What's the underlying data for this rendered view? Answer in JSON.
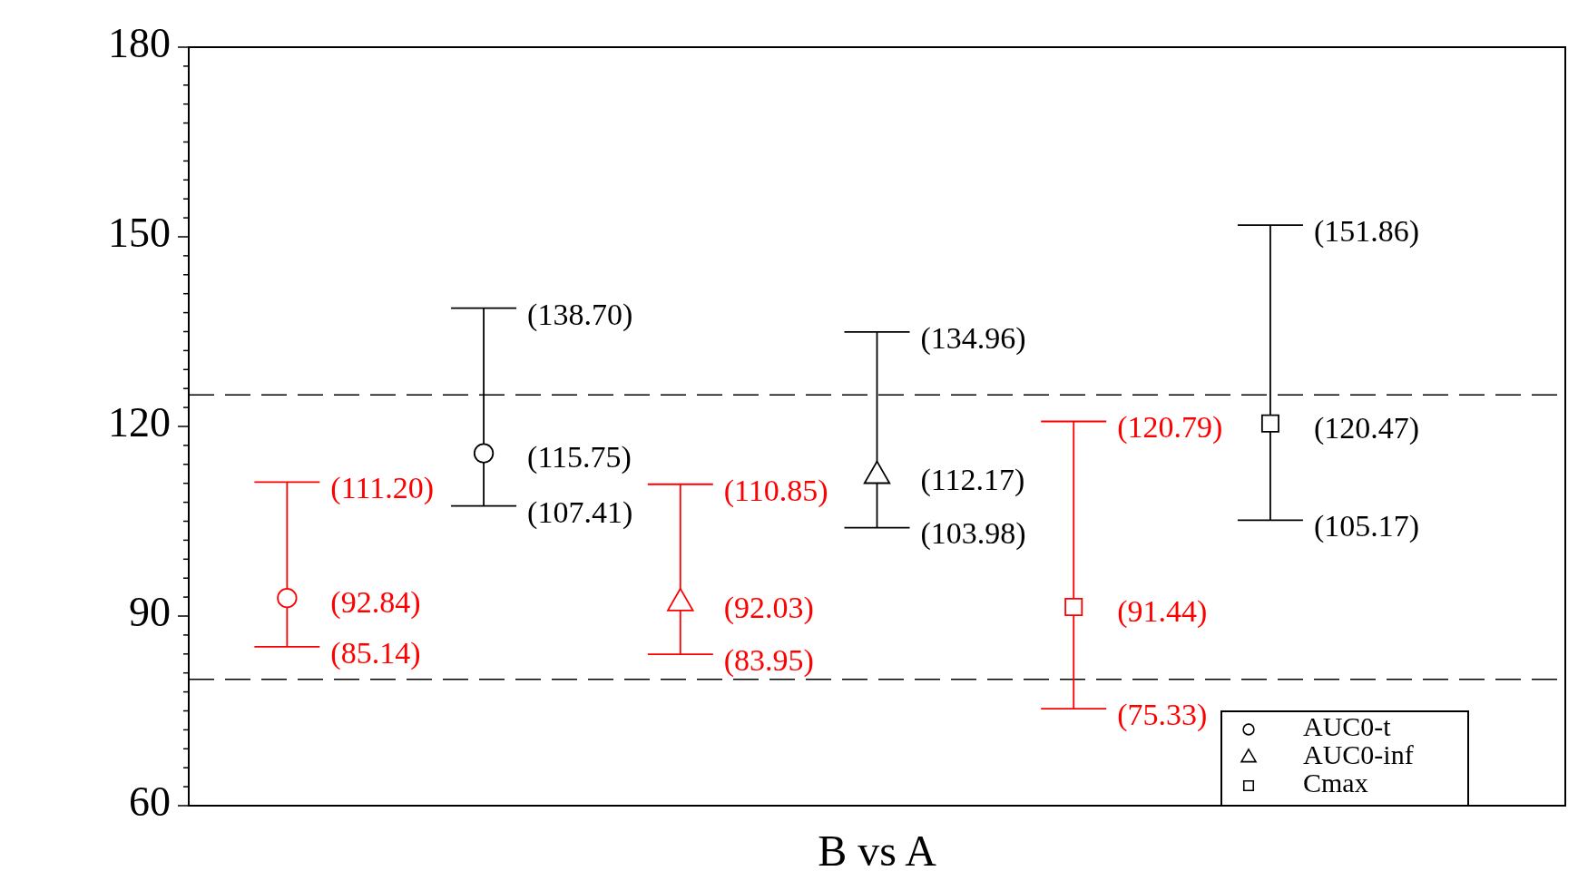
{
  "chart_data": {
    "type": "scatter",
    "xlabel": "B vs A",
    "categories": [
      null,
      null,
      null,
      null,
      null,
      null,
      null
    ],
    "ylim": [
      60,
      180
    ],
    "tick_labels": "y",
    "yticks": [
      60,
      {
        "value": 63,
        "label": null
      },
      {
        "value": 66,
        "label": null
      },
      {
        "value": 69,
        "label": null
      },
      {
        "value": 72,
        "label": null
      },
      {
        "value": 75,
        "label": null
      },
      {
        "value": 78,
        "label": null
      },
      {
        "value": 81,
        "label": null
      },
      {
        "value": 84,
        "label": null
      },
      {
        "value": 87,
        "label": null
      },
      90,
      {
        "value": 93,
        "label": null
      },
      {
        "value": 96,
        "label": null
      },
      {
        "value": 99,
        "label": null
      },
      {
        "value": 102,
        "label": null
      },
      {
        "value": 105,
        "label": null
      },
      {
        "value": 108,
        "label": null
      },
      {
        "value": 111,
        "label": null
      },
      {
        "value": 114,
        "label": null
      },
      {
        "value": 117,
        "label": null
      },
      120,
      {
        "value": 123,
        "label": null
      },
      {
        "value": 126,
        "label": null
      },
      {
        "value": 129,
        "label": null
      },
      {
        "value": 132,
        "label": null
      },
      {
        "value": 135,
        "label": null
      },
      {
        "value": 138,
        "label": null
      },
      {
        "value": 141,
        "label": null
      },
      {
        "value": 144,
        "label": null
      },
      {
        "value": 147,
        "label": null
      },
      150,
      {
        "value": 153,
        "label": null
      },
      {
        "value": 156,
        "label": null
      },
      {
        "value": 159,
        "label": null
      },
      {
        "value": 162,
        "label": null
      },
      {
        "value": 165,
        "label": null
      },
      {
        "value": 168,
        "label": null
      },
      {
        "value": 171,
        "label": null
      },
      {
        "value": 174,
        "label": null
      },
      {
        "value": 177,
        "label": null
      },
      180
    ],
    "legend": "bottom right",
    "series": [
      {
        "name": "AUC0-t",
        "marker": "circle",
        "color": "#000000",
        "colors": [
          "#ff0000",
          "#000000",
          null,
          null,
          null,
          null,
          null
        ],
        "values": [
          92.84,
          115.75,
          null,
          null,
          null,
          null,
          null
        ],
        "errors": [
          [
            85.14,
            111.2
          ],
          [
            107.41,
            138.7
          ],
          null,
          null,
          null,
          null,
          null
        ],
        "value_labels": [
          "(92.84)",
          "(115.75)",
          null,
          null,
          null,
          null,
          null
        ]
      },
      {
        "name": "AUC0-inf",
        "marker": "triangle",
        "color": "#000000",
        "colors": [
          null,
          null,
          "#ff0000",
          "#000000",
          null,
          null,
          null
        ],
        "values": [
          null,
          null,
          92.03,
          112.17,
          null,
          null,
          null
        ],
        "errors": [
          null,
          null,
          [
            83.95,
            110.85
          ],
          [
            103.98,
            134.96
          ],
          null,
          null,
          null
        ],
        "value_labels": [
          null,
          null,
          "(92.03)",
          "(112.17)",
          null,
          null,
          null
        ]
      },
      {
        "name": "Cmax",
        "marker": "square",
        "color": "#000000",
        "colors": [
          null,
          null,
          null,
          null,
          "#ff0000",
          "#000000",
          null
        ],
        "values": [
          null,
          null,
          null,
          null,
          91.44,
          120.47,
          null
        ],
        "errors": [
          null,
          null,
          null,
          null,
          [
            75.33,
            120.79
          ],
          [
            105.17,
            151.86
          ],
          null
        ],
        "value_labels": [
          null,
          null,
          null,
          null,
          "(91.44)",
          "(120.47)",
          null
        ]
      }
    ],
    "ref_lines": [
      {
        "axis": "y",
        "value": 125,
        "line_style": "dashed"
      },
      {
        "axis": "y",
        "value": 80,
        "line_style": "dashed"
      }
    ],
    "annotations": [
      "(85.14)",
      "(111.20)",
      "(107.41)",
      "(138.70)",
      "(83.95)",
      "(110.85)",
      "(103.98)",
      "(134.96)",
      "(75.33)",
      "(120.79)",
      "(105.17)",
      "(151.86)"
    ]
  }
}
